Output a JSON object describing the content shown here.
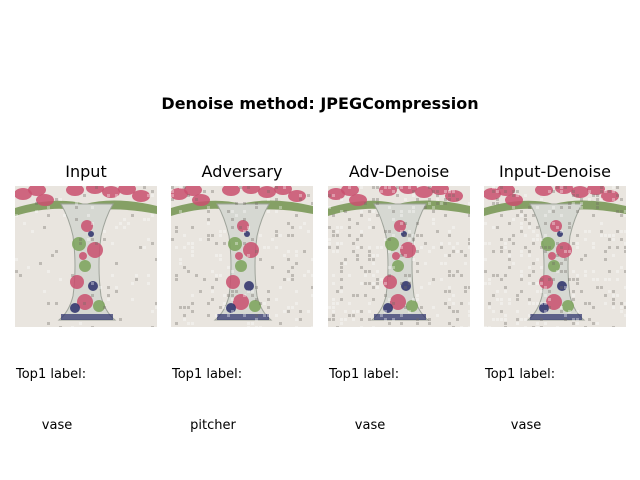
{
  "figure": {
    "suptitle": "Denoise method: JPEGCompression"
  },
  "panels": [
    {
      "title": "Input",
      "caption_label": "Top1 label:",
      "caption_value": "vase",
      "noise": "low"
    },
    {
      "title": "Adversary",
      "caption_label": "Top1 label:",
      "caption_value": "pitcher",
      "noise": "medium"
    },
    {
      "title": "Adv-Denoise",
      "caption_label": "Top1 label:",
      "caption_value": "vase",
      "noise": "high"
    },
    {
      "title": "Input-Denoise",
      "caption_label": "Top1 label:",
      "caption_value": "vase",
      "noise": "high"
    }
  ],
  "colors": {
    "background": "#e9e5df",
    "vase_body": "#d6d8d2",
    "flower_pink": "#c9506f",
    "leaf_green": "#7ba35a",
    "accent_blue": "#2a2f6a",
    "stem_green": "#6b8f46"
  }
}
